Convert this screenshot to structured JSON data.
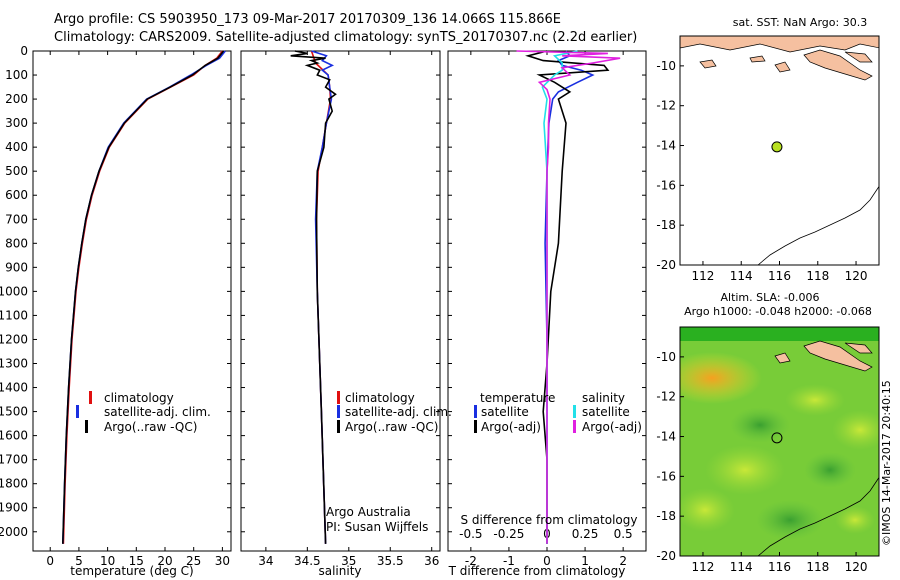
{
  "header": {
    "line1": "Argo profile: CS 5903950_173 09-Mar-2017 20170309_136 14.066S 115.866E",
    "line2": "Climatology: CARS2009. Satellite-adjusted climatology: synTS_20170307.nc (2.2d earlier)"
  },
  "colors": {
    "climatology": "#e01010",
    "satellite": "#1a2fe0",
    "argo": "#000000",
    "sal_satellite": "#22e0e8",
    "sal_argo": "#e020e0",
    "ocean": "#ffffff",
    "land": "#f5c0a0",
    "marker": "#b8e020"
  },
  "credit": "©IMOS 14-Mar-2017 20:40:15",
  "chart_data": [
    {
      "type": "line",
      "xlabel": "temperature (deg C)",
      "xticks": [
        "0",
        "5",
        "10",
        "15",
        "20",
        "25",
        "30"
      ],
      "xlim": [
        -3,
        31.5
      ],
      "ylim": [
        2080,
        0
      ],
      "yticks": [
        "0",
        "100",
        "200",
        "300",
        "400",
        "500",
        "600",
        "700",
        "800",
        "900",
        "1000",
        "1100",
        "1200",
        "1300",
        "1400",
        "1500",
        "1600",
        "1700",
        "1800",
        "1900",
        "2000"
      ],
      "legend": [
        "climatology",
        "satellite-adj. clim.",
        "Argo(..raw -QC)"
      ],
      "series": [
        {
          "name": "climatology",
          "color": "#e01010",
          "depth": [
            0,
            30,
            60,
            100,
            150,
            200,
            300,
            400,
            500,
            600,
            700,
            800,
            900,
            1000,
            1200,
            1400,
            1600,
            1800,
            2050
          ],
          "values": [
            30,
            29,
            27,
            25,
            21,
            17,
            13,
            10.3,
            8.6,
            7.3,
            6.3,
            5.6,
            5,
            4.5,
            3.8,
            3.3,
            2.9,
            2.6,
            2.3
          ]
        },
        {
          "name": "satellite-adj. clim.",
          "color": "#1a2fe0",
          "depth": [
            0,
            30,
            60,
            100,
            150,
            200,
            300,
            400,
            500,
            600,
            700,
            800,
            900,
            1000,
            1200,
            1400,
            1600,
            1800,
            2050
          ],
          "values": [
            30.5,
            29.5,
            27.2,
            24.5,
            20.8,
            16.8,
            12.8,
            10.1,
            8.5,
            7.2,
            6.2,
            5.5,
            4.9,
            4.4,
            3.7,
            3.2,
            2.8,
            2.5,
            2.2
          ]
        },
        {
          "name": "Argo(..raw -QC)",
          "color": "#000000",
          "depth": [
            0,
            30,
            60,
            100,
            150,
            200,
            300,
            400,
            500,
            600,
            700,
            800,
            900,
            1000,
            1200,
            1400,
            1600,
            1800,
            2050
          ],
          "values": [
            30.2,
            29.2,
            27,
            24.8,
            20.9,
            16.9,
            12.9,
            10.2,
            8.5,
            7.2,
            6.2,
            5.5,
            4.9,
            4.4,
            3.7,
            3.2,
            2.8,
            2.5,
            2.2
          ]
        }
      ]
    },
    {
      "type": "line",
      "xlabel": "salinity",
      "xticks": [
        "34",
        "34.5",
        "35",
        "35.5",
        "36"
      ],
      "xlim": [
        33.7,
        36.1
      ],
      "ylim": [
        2080,
        0
      ],
      "legend": [
        "climatology",
        "satellite-adj. clim.",
        "Argo(..raw -QC)"
      ],
      "annotation": [
        "Argo Australia",
        "PI: Susan Wijffels"
      ],
      "series": [
        {
          "name": "climatology",
          "color": "#e01010",
          "depth": [
            0,
            50,
            100,
            150,
            200,
            300,
            400,
            500,
            700,
            1000,
            1500,
            2050
          ],
          "values": [
            34.55,
            34.6,
            34.75,
            34.77,
            34.78,
            34.73,
            34.68,
            34.63,
            34.61,
            34.62,
            34.67,
            34.72
          ]
        },
        {
          "name": "satellite-adj. clim.",
          "color": "#1a2fe0",
          "depth": [
            0,
            20,
            40,
            60,
            80,
            100,
            150,
            200,
            300,
            400,
            500,
            700,
            1000,
            1500,
            2050
          ],
          "values": [
            34.55,
            34.73,
            34.68,
            34.8,
            34.68,
            34.75,
            34.77,
            34.79,
            34.73,
            34.68,
            34.62,
            34.6,
            34.62,
            34.67,
            34.72
          ]
        },
        {
          "name": "Argo(..raw -QC)",
          "color": "#000000",
          "depth": [
            0,
            10,
            20,
            30,
            40,
            50,
            60,
            80,
            100,
            120,
            150,
            180,
            200,
            250,
            300,
            400,
            500,
            700,
            1000,
            1500,
            2050
          ],
          "values": [
            34.35,
            34.5,
            34.3,
            34.72,
            34.55,
            34.62,
            34.5,
            34.65,
            34.62,
            34.77,
            34.72,
            34.84,
            34.76,
            34.8,
            34.72,
            34.7,
            34.62,
            34.61,
            34.62,
            34.67,
            34.72
          ]
        }
      ]
    },
    {
      "type": "line",
      "xlabel": "T difference from climatology",
      "x2label": "S difference from climatology",
      "xticks": [
        "-2",
        "-1",
        "0",
        "1",
        "2"
      ],
      "x2ticks": [
        "-0.5",
        "-0.25",
        "0",
        "0.25",
        "0.5"
      ],
      "xlim": [
        -2.6,
        2.6
      ],
      "ylim": [
        2080,
        0
      ],
      "legend_t": [
        "temperature",
        "satellite",
        "Argo(-adj)"
      ],
      "legend_s": [
        "salinity",
        "satellite",
        "Argo(-adj)"
      ],
      "series": [
        {
          "name": "temperature satellite",
          "color": "#1a2fe0",
          "depth": [
            0,
            20,
            40,
            60,
            80,
            100,
            130,
            170,
            200,
            300,
            500,
            800,
            1200,
            2050
          ],
          "values": [
            0.5,
            0.6,
            0.3,
            0.4,
            0.9,
            1.2,
            0.8,
            0.3,
            0.15,
            0.05,
            0.0,
            -0.05,
            0.0,
            0.0
          ]
        },
        {
          "name": "temperature Argo(-adj)",
          "color": "#000000",
          "depth": [
            0,
            20,
            40,
            60,
            80,
            100,
            130,
            170,
            200,
            300,
            500,
            800,
            1000,
            1300,
            1500,
            1700,
            2050
          ],
          "values": [
            0.0,
            -0.5,
            -0.1,
            1.5,
            1.6,
            -0.2,
            0.2,
            0.6,
            0.3,
            0.5,
            0.4,
            0.3,
            0.1,
            0.0,
            -0.1,
            0.0,
            0.0
          ]
        },
        {
          "name": "salinity satellite",
          "color": "#22e0e8",
          "depth": [
            0,
            20,
            50,
            80,
            100,
            150,
            200,
            300,
            500,
            800,
            1000,
            2050
          ],
          "values": [
            0.2,
            0.05,
            0.1,
            0.1,
            0.05,
            -0.03,
            0.0,
            -0.02,
            0.0,
            0.0,
            0.0,
            0.0
          ]
        },
        {
          "name": "salinity Argo(-adj)",
          "color": "#e020e0",
          "depth": [
            0,
            10,
            20,
            30,
            50,
            70,
            100,
            130,
            160,
            200,
            300,
            400,
            500,
            700,
            1000,
            1500,
            2050
          ],
          "values": [
            -0.2,
            0.4,
            0.1,
            0.48,
            0.3,
            0.1,
            0.15,
            -0.05,
            0.0,
            0.02,
            0.01,
            0.01,
            0.0,
            0.0,
            0.0,
            0.0,
            0.0
          ]
        }
      ]
    }
  ],
  "map_top": {
    "title": "sat. SST: NaN Argo: 30.3",
    "xticks": [
      "112",
      "114",
      "116",
      "118",
      "120"
    ],
    "yticks": [
      "-10",
      "-12",
      "-14",
      "-16",
      "-18",
      "-20"
    ],
    "xlim": [
      110.8,
      121.2
    ],
    "ylim": [
      -20,
      -8.5
    ],
    "marker": {
      "lon": 115.866,
      "lat": -14.066
    }
  },
  "map_bottom": {
    "title": "Altim. SLA: -0.006",
    "subtitle": "Argo h1000: -0.048 h2000: -0.068",
    "xticks": [
      "112",
      "114",
      "116",
      "118",
      "120"
    ],
    "yticks": [
      "-10",
      "-12",
      "-14",
      "-16",
      "-18",
      "-20"
    ],
    "xlim": [
      110.8,
      121.2
    ],
    "ylim": [
      -20,
      -8.5
    ],
    "marker": {
      "lon": 115.866,
      "lat": -14.066
    }
  }
}
